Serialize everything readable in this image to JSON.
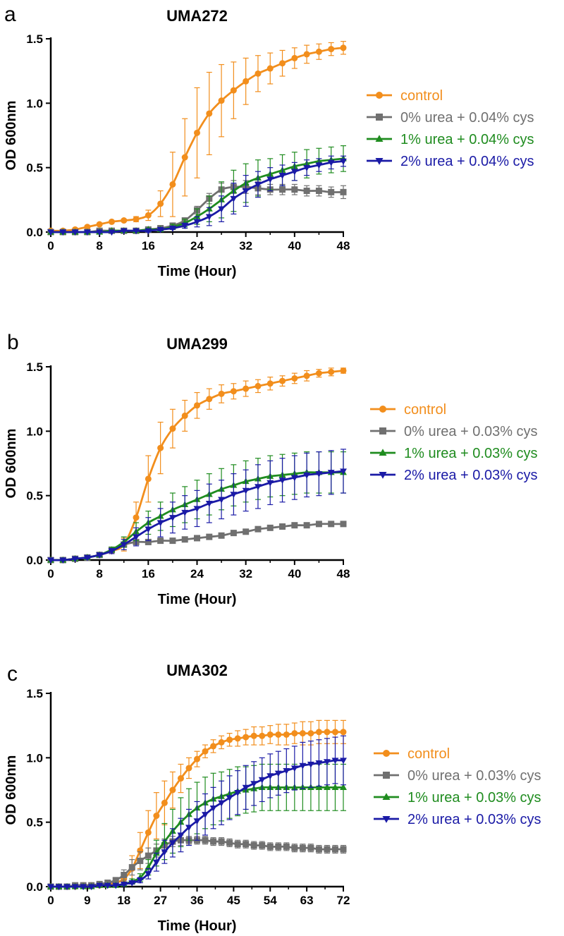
{
  "chart_data": [
    {
      "panel": "a",
      "type": "line",
      "title": "UMA272",
      "xlabel": "Time (Hour)",
      "ylabel": "OD 600nm",
      "xlim": [
        0,
        48
      ],
      "ylim": [
        0,
        1.5
      ],
      "xticks": [
        0,
        8,
        16,
        24,
        32,
        40,
        48
      ],
      "yticks": [
        0,
        0.5,
        1.0,
        1.5
      ],
      "ytick_labels": [
        "0.0",
        "0.5",
        "1.0",
        "1.5"
      ],
      "x": [
        0,
        2,
        4,
        6,
        8,
        10,
        12,
        14,
        16,
        18,
        20,
        22,
        24,
        26,
        28,
        30,
        32,
        34,
        36,
        38,
        40,
        42,
        44,
        46,
        48
      ],
      "legend": "right",
      "series": [
        {
          "name": "control",
          "color": "#F28E1C",
          "marker": "circle",
          "values": [
            0.01,
            0.01,
            0.02,
            0.04,
            0.06,
            0.08,
            0.09,
            0.1,
            0.13,
            0.22,
            0.37,
            0.58,
            0.77,
            0.92,
            1.02,
            1.1,
            1.17,
            1.23,
            1.27,
            1.31,
            1.35,
            1.38,
            1.4,
            1.42,
            1.43
          ],
          "errors": [
            0,
            0,
            0,
            0.01,
            0.01,
            0.01,
            0.01,
            0.02,
            0.04,
            0.1,
            0.25,
            0.3,
            0.35,
            0.32,
            0.28,
            0.22,
            0.18,
            0.14,
            0.12,
            0.1,
            0.08,
            0.07,
            0.06,
            0.05,
            0.05
          ]
        },
        {
          "name": "0% urea + 0.04% cys",
          "color": "#707070",
          "marker": "square",
          "values": [
            0.0,
            0.0,
            0.0,
            0.0,
            0.01,
            0.01,
            0.01,
            0.01,
            0.02,
            0.03,
            0.05,
            0.09,
            0.17,
            0.26,
            0.33,
            0.35,
            0.35,
            0.34,
            0.33,
            0.33,
            0.33,
            0.32,
            0.32,
            0.31,
            0.31
          ],
          "errors": [
            0,
            0,
            0,
            0,
            0,
            0,
            0,
            0.01,
            0.01,
            0.01,
            0.02,
            0.02,
            0.03,
            0.04,
            0.05,
            0.05,
            0.05,
            0.05,
            0.04,
            0.04,
            0.04,
            0.04,
            0.04,
            0.04,
            0.05
          ]
        },
        {
          "name": "1% urea + 0.04% cys",
          "color": "#1F8C1F",
          "marker": "triangle-up",
          "values": [
            0.0,
            0.0,
            0.0,
            0.0,
            0.0,
            0.01,
            0.01,
            0.01,
            0.02,
            0.02,
            0.04,
            0.07,
            0.12,
            0.18,
            0.25,
            0.32,
            0.38,
            0.42,
            0.45,
            0.48,
            0.51,
            0.53,
            0.55,
            0.56,
            0.57
          ],
          "errors": [
            0,
            0,
            0,
            0,
            0,
            0,
            0,
            0,
            0.01,
            0.01,
            0.02,
            0.03,
            0.06,
            0.1,
            0.14,
            0.16,
            0.15,
            0.14,
            0.12,
            0.12,
            0.11,
            0.11,
            0.1,
            0.1,
            0.1
          ]
        },
        {
          "name": "2% urea + 0.04% cys",
          "color": "#1A1AA6",
          "marker": "triangle-down",
          "values": [
            0.0,
            0.0,
            0.0,
            0.0,
            0.0,
            0.0,
            0.01,
            0.01,
            0.01,
            0.02,
            0.03,
            0.05,
            0.08,
            0.12,
            0.18,
            0.26,
            0.32,
            0.37,
            0.41,
            0.44,
            0.47,
            0.5,
            0.52,
            0.54,
            0.55
          ],
          "errors": [
            0,
            0,
            0,
            0,
            0,
            0,
            0,
            0,
            0.01,
            0.01,
            0.01,
            0.02,
            0.04,
            0.07,
            0.1,
            0.12,
            0.12,
            0.1,
            0.09,
            0.08,
            0.07,
            0.06,
            0.05,
            0.05,
            0.04
          ]
        }
      ]
    },
    {
      "panel": "b",
      "type": "line",
      "title": "UMA299",
      "xlabel": "Time (Hour)",
      "ylabel": "OD 600nm",
      "xlim": [
        0,
        48
      ],
      "ylim": [
        0,
        1.5
      ],
      "xticks": [
        0,
        8,
        16,
        24,
        32,
        40,
        48
      ],
      "yticks": [
        0,
        0.5,
        1.0,
        1.5
      ],
      "ytick_labels": [
        "0.0",
        "0.5",
        "1.0",
        "1.5"
      ],
      "x": [
        0,
        2,
        4,
        6,
        8,
        10,
        12,
        14,
        16,
        18,
        20,
        22,
        24,
        26,
        28,
        30,
        32,
        34,
        36,
        38,
        40,
        42,
        44,
        46,
        48
      ],
      "legend": "right",
      "series": [
        {
          "name": "control",
          "color": "#F28E1C",
          "marker": "circle",
          "values": [
            0.0,
            0.0,
            0.01,
            0.02,
            0.04,
            0.07,
            0.12,
            0.33,
            0.63,
            0.87,
            1.02,
            1.12,
            1.2,
            1.25,
            1.29,
            1.31,
            1.33,
            1.35,
            1.37,
            1.39,
            1.41,
            1.43,
            1.45,
            1.46,
            1.47
          ],
          "errors": [
            0,
            0,
            0,
            0.01,
            0.01,
            0.02,
            0.05,
            0.12,
            0.18,
            0.2,
            0.15,
            0.12,
            0.1,
            0.08,
            0.07,
            0.06,
            0.06,
            0.05,
            0.05,
            0.04,
            0.04,
            0.04,
            0.03,
            0.03,
            0.02
          ]
        },
        {
          "name": "0% urea + 0.03% cys",
          "color": "#707070",
          "marker": "square",
          "values": [
            0.0,
            0.0,
            0.01,
            0.02,
            0.04,
            0.08,
            0.12,
            0.14,
            0.14,
            0.15,
            0.15,
            0.16,
            0.17,
            0.18,
            0.19,
            0.21,
            0.22,
            0.24,
            0.25,
            0.26,
            0.27,
            0.27,
            0.28,
            0.28,
            0.28
          ],
          "errors": [
            0,
            0,
            0,
            0,
            0.01,
            0.01,
            0.02,
            0.02,
            0.02,
            0.01,
            0.01,
            0.01,
            0.01,
            0.01,
            0.01,
            0.01,
            0.01,
            0.01,
            0.01,
            0.01,
            0.01,
            0.01,
            0.01,
            0.01,
            0.01
          ]
        },
        {
          "name": "1% urea + 0.03% cys",
          "color": "#1F8C1F",
          "marker": "triangle-up",
          "values": [
            0.0,
            0.0,
            0.01,
            0.02,
            0.04,
            0.08,
            0.14,
            0.22,
            0.29,
            0.34,
            0.39,
            0.43,
            0.47,
            0.51,
            0.55,
            0.58,
            0.61,
            0.63,
            0.65,
            0.66,
            0.67,
            0.68,
            0.68,
            0.68,
            0.68
          ],
          "errors": [
            0,
            0,
            0,
            0.01,
            0.01,
            0.02,
            0.04,
            0.07,
            0.09,
            0.11,
            0.13,
            0.14,
            0.15,
            0.16,
            0.16,
            0.16,
            0.16,
            0.16,
            0.16,
            0.16,
            0.16,
            0.16,
            0.16,
            0.16,
            0.16
          ]
        },
        {
          "name": "2% urea + 0.03% cys",
          "color": "#1A1AA6",
          "marker": "triangle-down",
          "values": [
            0.0,
            0.0,
            0.01,
            0.02,
            0.04,
            0.07,
            0.12,
            0.18,
            0.24,
            0.29,
            0.33,
            0.37,
            0.4,
            0.44,
            0.47,
            0.51,
            0.54,
            0.57,
            0.6,
            0.62,
            0.64,
            0.66,
            0.67,
            0.68,
            0.69
          ],
          "errors": [
            0,
            0,
            0,
            0.01,
            0.01,
            0.02,
            0.04,
            0.07,
            0.09,
            0.11,
            0.12,
            0.13,
            0.14,
            0.15,
            0.15,
            0.16,
            0.16,
            0.17,
            0.17,
            0.17,
            0.17,
            0.17,
            0.17,
            0.17,
            0.17
          ]
        }
      ]
    },
    {
      "panel": "c",
      "type": "line",
      "title": "UMA302",
      "xlabel": "Time (Hour)",
      "ylabel": "OD 600nm",
      "xlim": [
        0,
        72
      ],
      "ylim": [
        0,
        1.5
      ],
      "xticks": [
        0,
        9,
        18,
        27,
        36,
        45,
        54,
        63,
        72
      ],
      "yticks": [
        0,
        0.5,
        1.0,
        1.5
      ],
      "ytick_labels": [
        "0.0",
        "0.5",
        "1.0",
        "1.5"
      ],
      "x": [
        0,
        2,
        4,
        6,
        8,
        10,
        12,
        14,
        16,
        18,
        20,
        22,
        24,
        26,
        28,
        30,
        32,
        34,
        36,
        38,
        40,
        42,
        44,
        46,
        48,
        50,
        52,
        54,
        56,
        58,
        60,
        62,
        64,
        66,
        68,
        70,
        72
      ],
      "legend": "right",
      "series": [
        {
          "name": "control",
          "color": "#F28E1C",
          "marker": "circle",
          "values": [
            0.0,
            0.0,
            0.0,
            0.0,
            0.01,
            0.01,
            0.01,
            0.02,
            0.03,
            0.06,
            0.14,
            0.28,
            0.42,
            0.55,
            0.65,
            0.75,
            0.84,
            0.92,
            0.99,
            1.05,
            1.09,
            1.12,
            1.14,
            1.15,
            1.16,
            1.17,
            1.17,
            1.18,
            1.18,
            1.18,
            1.19,
            1.19,
            1.19,
            1.2,
            1.2,
            1.2,
            1.2
          ],
          "errors": [
            0,
            0,
            0,
            0,
            0,
            0,
            0,
            0.01,
            0.02,
            0.05,
            0.1,
            0.14,
            0.17,
            0.18,
            0.17,
            0.14,
            0.11,
            0.08,
            0.06,
            0.05,
            0.05,
            0.05,
            0.05,
            0.06,
            0.06,
            0.07,
            0.07,
            0.07,
            0.08,
            0.08,
            0.08,
            0.09,
            0.09,
            0.09,
            0.09,
            0.09,
            0.09
          ]
        },
        {
          "name": "0% urea + 0.03% cys",
          "color": "#707070",
          "marker": "square",
          "values": [
            0.0,
            0.0,
            0.0,
            0.01,
            0.01,
            0.01,
            0.02,
            0.03,
            0.05,
            0.09,
            0.15,
            0.2,
            0.24,
            0.28,
            0.32,
            0.35,
            0.36,
            0.36,
            0.36,
            0.36,
            0.35,
            0.35,
            0.34,
            0.33,
            0.33,
            0.32,
            0.32,
            0.31,
            0.31,
            0.31,
            0.3,
            0.3,
            0.3,
            0.29,
            0.29,
            0.29,
            0.29
          ],
          "errors": [
            0,
            0,
            0,
            0,
            0,
            0,
            0,
            0.01,
            0.02,
            0.04,
            0.06,
            0.07,
            0.06,
            0.05,
            0.05,
            0.04,
            0.04,
            0.03,
            0.03,
            0.03,
            0.03,
            0.03,
            0.03,
            0.03,
            0.03,
            0.03,
            0.03,
            0.03,
            0.03,
            0.03,
            0.03,
            0.03,
            0.03,
            0.03,
            0.03,
            0.03,
            0.03
          ]
        },
        {
          "name": "1% urea + 0.03% cys",
          "color": "#1F8C1F",
          "marker": "triangle-up",
          "values": [
            0.0,
            0.0,
            0.0,
            0.0,
            0.0,
            0.0,
            0.01,
            0.01,
            0.01,
            0.02,
            0.04,
            0.07,
            0.15,
            0.26,
            0.35,
            0.43,
            0.5,
            0.56,
            0.61,
            0.65,
            0.68,
            0.7,
            0.72,
            0.74,
            0.75,
            0.76,
            0.77,
            0.77,
            0.77,
            0.77,
            0.77,
            0.77,
            0.77,
            0.77,
            0.77,
            0.77,
            0.77
          ],
          "errors": [
            0,
            0,
            0,
            0,
            0,
            0,
            0,
            0,
            0,
            0.01,
            0.02,
            0.03,
            0.06,
            0.1,
            0.14,
            0.17,
            0.19,
            0.2,
            0.2,
            0.2,
            0.2,
            0.19,
            0.19,
            0.19,
            0.18,
            0.18,
            0.18,
            0.18,
            0.18,
            0.18,
            0.18,
            0.18,
            0.18,
            0.18,
            0.18,
            0.18,
            0.18
          ]
        },
        {
          "name": "2% urea + 0.03% cys",
          "color": "#1A1AA6",
          "marker": "triangle-down",
          "values": [
            0.0,
            0.0,
            0.0,
            0.0,
            0.0,
            0.0,
            0.01,
            0.01,
            0.01,
            0.02,
            0.03,
            0.05,
            0.1,
            0.19,
            0.27,
            0.34,
            0.4,
            0.46,
            0.51,
            0.56,
            0.61,
            0.65,
            0.69,
            0.73,
            0.77,
            0.8,
            0.83,
            0.86,
            0.88,
            0.9,
            0.92,
            0.94,
            0.95,
            0.96,
            0.97,
            0.98,
            0.98
          ],
          "errors": [
            0,
            0,
            0,
            0,
            0,
            0,
            0,
            0,
            0,
            0.01,
            0.01,
            0.02,
            0.04,
            0.07,
            0.09,
            0.11,
            0.13,
            0.14,
            0.15,
            0.16,
            0.16,
            0.17,
            0.17,
            0.17,
            0.17,
            0.17,
            0.17,
            0.17,
            0.17,
            0.17,
            0.17,
            0.18,
            0.18,
            0.18,
            0.18,
            0.18,
            0.19
          ]
        }
      ]
    }
  ]
}
